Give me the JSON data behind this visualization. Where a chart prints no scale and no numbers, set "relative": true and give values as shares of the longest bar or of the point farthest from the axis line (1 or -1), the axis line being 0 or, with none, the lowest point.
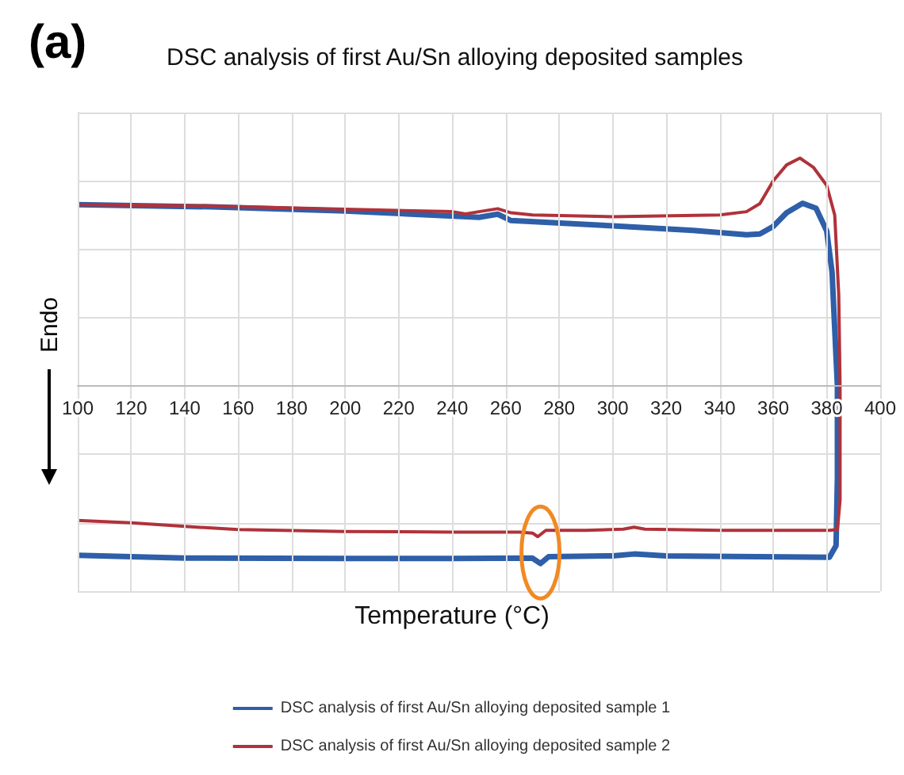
{
  "chart_data": {
    "type": "line",
    "title": "DSC analysis of first Au/Sn alloying deposited samples",
    "xlabel": "Temperature (°C)",
    "ylabel": "Endo",
    "annotations": [
      "(a)"
    ],
    "relative": true,
    "xlim": [
      100,
      400
    ],
    "xticks": [
      100,
      120,
      140,
      160,
      180,
      200,
      220,
      240,
      260,
      280,
      300,
      320,
      340,
      360,
      380,
      400
    ],
    "grid": true,
    "legend": "bottom",
    "series": [
      {
        "name": "DSC analysis of first Au/Sn alloying deposited sample 1",
        "color": "#2e5fa8",
        "x": [
          100,
          150,
          200,
          250,
          257,
          262,
          300,
          330,
          350,
          355,
          360,
          365,
          371,
          376,
          380,
          382,
          383,
          384,
          384,
          383.5,
          381,
          345,
          320,
          308,
          300,
          276,
          273,
          270,
          240,
          200,
          140,
          100
        ],
        "values": [
          0.796,
          0.786,
          0.768,
          0.74,
          0.754,
          0.726,
          0.703,
          0.683,
          0.664,
          0.667,
          0.7,
          0.76,
          0.802,
          0.78,
          0.68,
          0.5,
          0.25,
          0,
          -0.4,
          -0.7,
          -0.751,
          -0.748,
          -0.745,
          -0.737,
          -0.745,
          -0.749,
          -0.779,
          -0.755,
          -0.757,
          -0.757,
          -0.755,
          -0.743
        ]
      },
      {
        "name": "DSC analysis of first Au/Sn alloying deposited sample 2",
        "color": "#b0323a",
        "x": [
          100,
          150,
          200,
          240,
          245,
          250,
          257,
          262,
          270,
          300,
          340,
          350,
          355,
          360,
          365,
          370,
          375,
          380,
          383,
          384.5,
          385,
          385,
          384,
          381,
          340,
          312,
          308,
          304,
          290,
          275,
          272,
          270,
          265,
          240,
          200,
          160,
          140,
          120,
          100
        ],
        "values": [
          0.796,
          0.79,
          0.776,
          0.765,
          0.755,
          0.765,
          0.778,
          0.76,
          0.751,
          0.743,
          0.751,
          0.765,
          0.8,
          0.9,
          0.97,
          1,
          0.96,
          0.88,
          0.75,
          0.4,
          0,
          -0.5,
          -0.63,
          -0.633,
          -0.633,
          -0.628,
          -0.619,
          -0.628,
          -0.633,
          -0.633,
          -0.661,
          -0.645,
          -0.641,
          -0.641,
          -0.638,
          -0.63,
          -0.616,
          -0.6,
          -0.59
        ]
      }
    ]
  }
}
